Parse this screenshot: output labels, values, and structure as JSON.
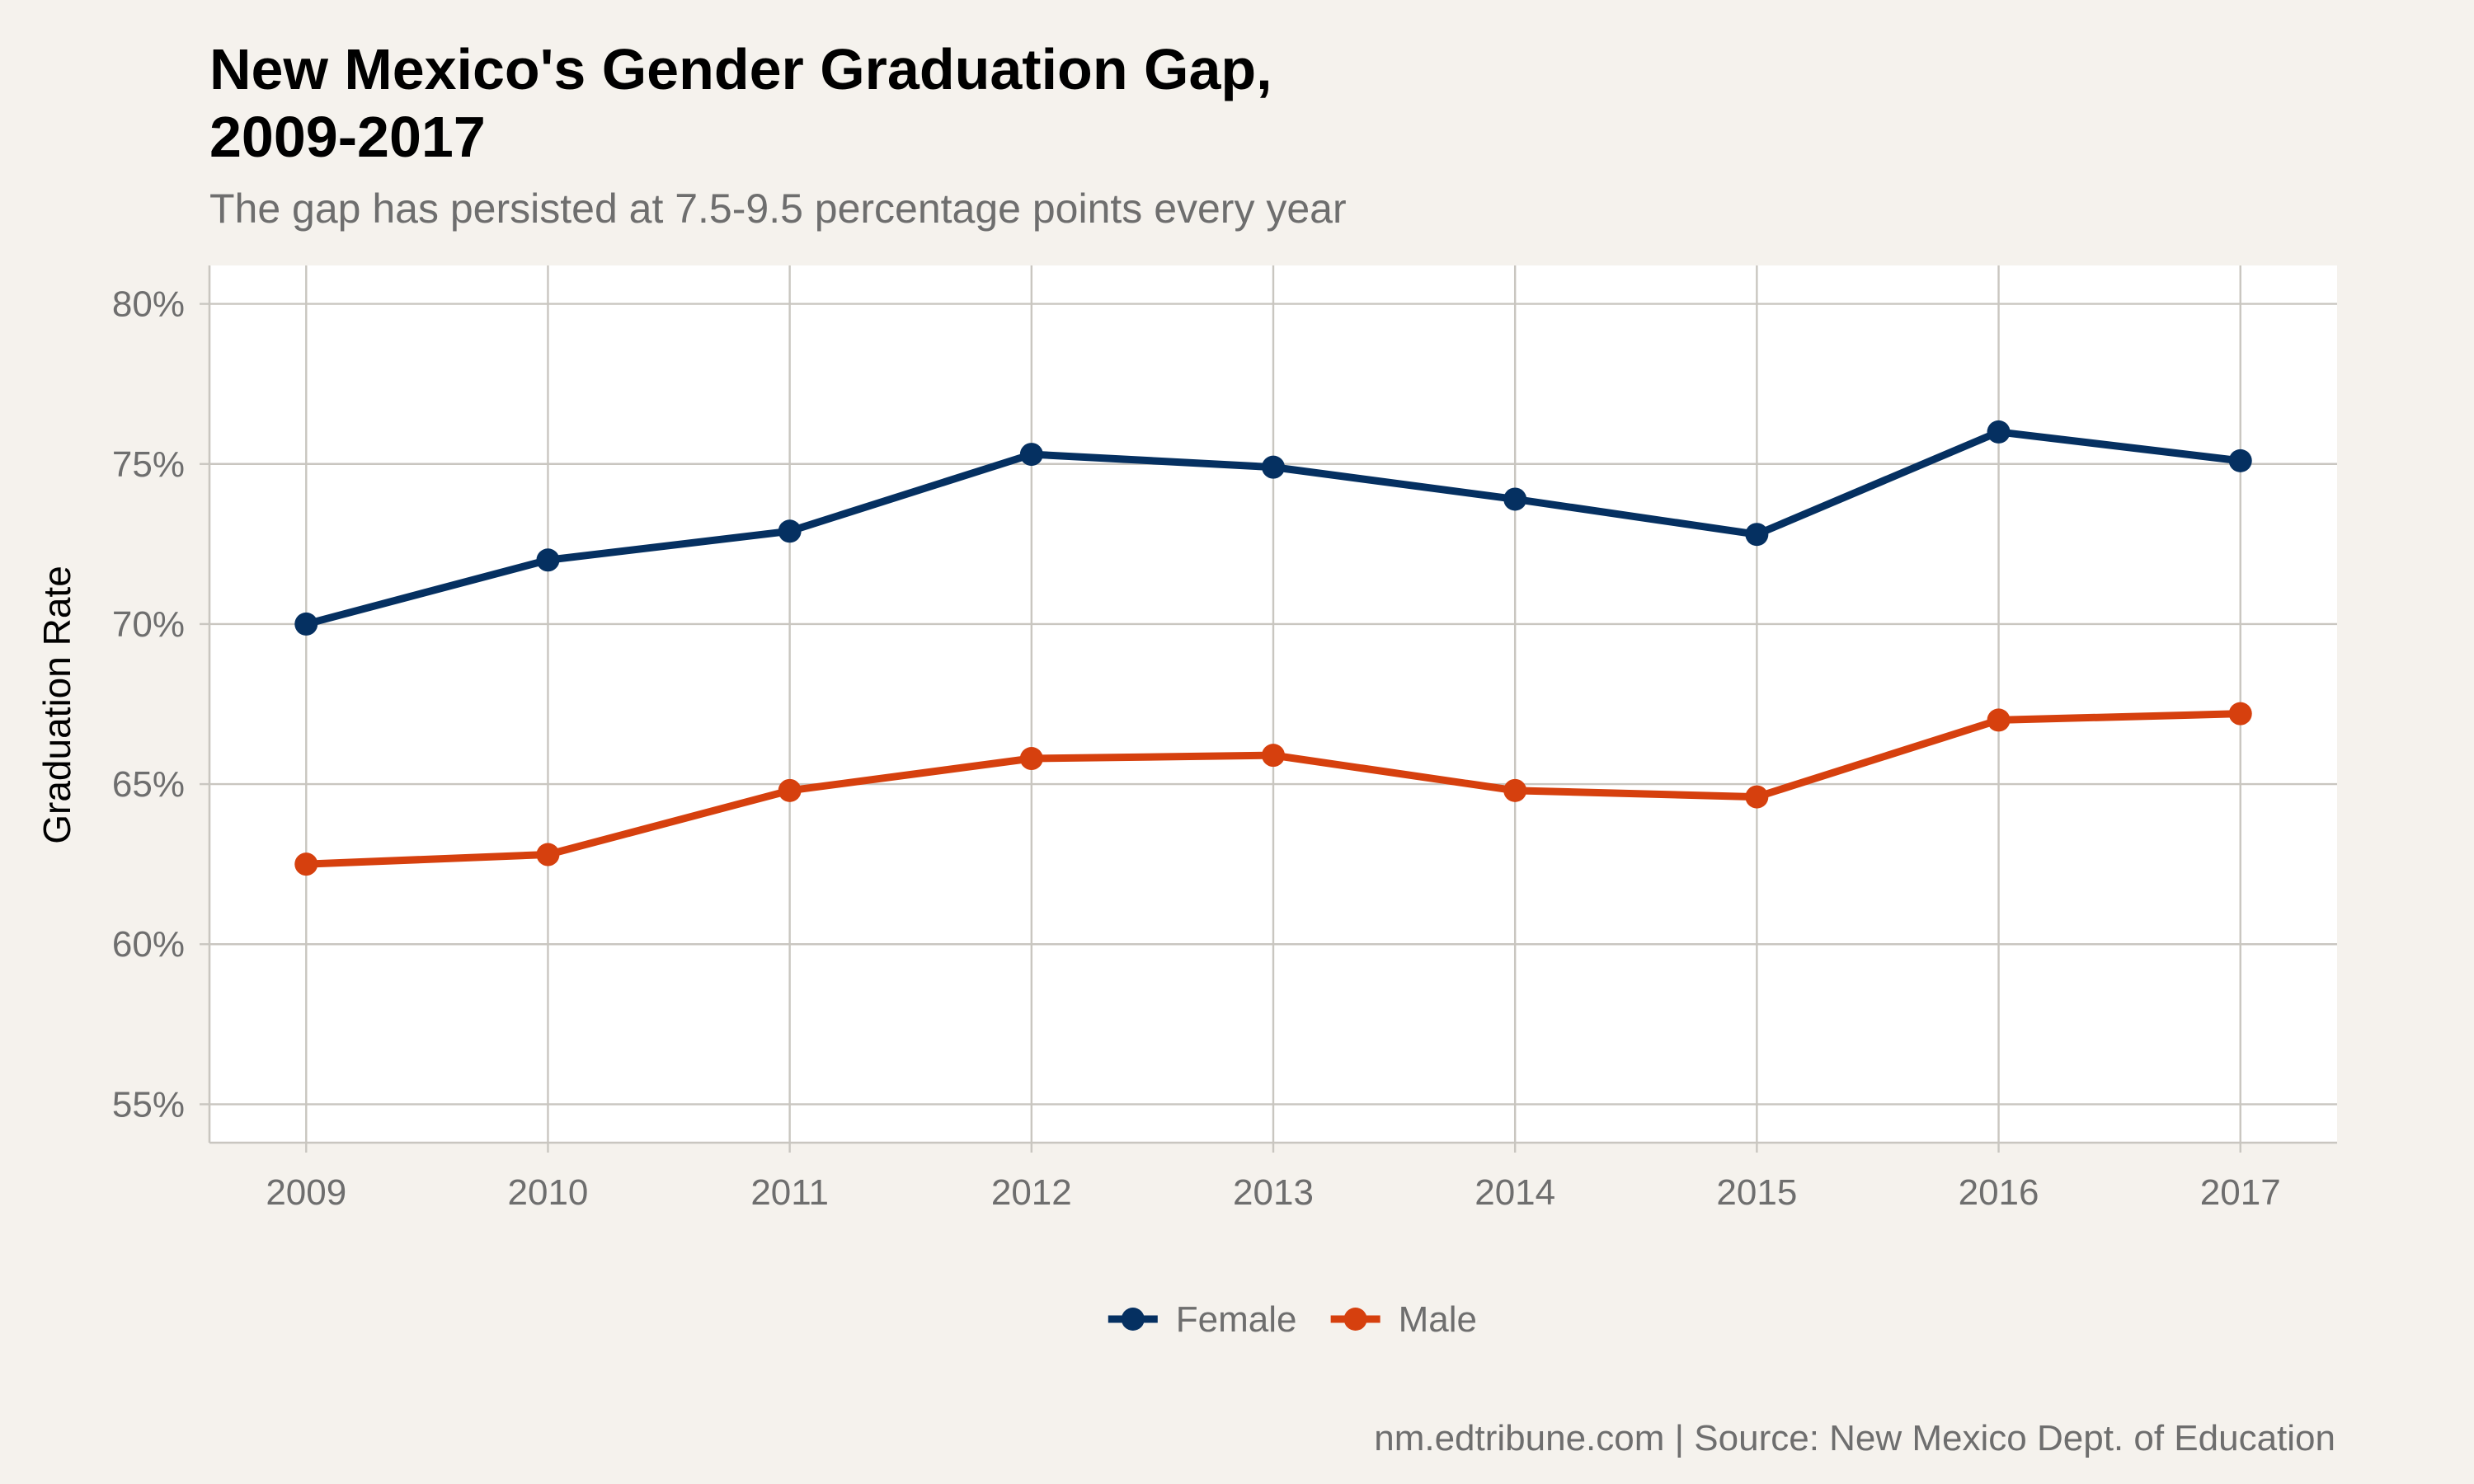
{
  "chart_data": {
    "type": "line",
    "title": "New Mexico's Gender Graduation Gap,\n2009-2017",
    "subtitle": "The gap has persisted at 7.5-9.5 percentage points every year",
    "xlabel": "",
    "ylabel": "Graduation Rate",
    "x": [
      "2009",
      "2010",
      "2011",
      "2012",
      "2013",
      "2014",
      "2015",
      "2016",
      "2017"
    ],
    "xlim": [
      2008.6,
      2017.4
    ],
    "ylim": [
      53.8,
      81.2
    ],
    "yticks": [
      55,
      60,
      65,
      70,
      75,
      80
    ],
    "ytick_labels": [
      "55%",
      "60%",
      "65%",
      "70%",
      "75%",
      "80%"
    ],
    "grid": true,
    "legend_position": "bottom",
    "series": [
      {
        "name": "Female",
        "color": "#053061",
        "values": [
          70.0,
          72.0,
          72.9,
          75.3,
          74.9,
          73.9,
          72.8,
          76.0,
          75.1
        ]
      },
      {
        "name": "Male",
        "color": "#d6400e",
        "values": [
          62.5,
          62.8,
          64.8,
          65.8,
          65.9,
          64.8,
          64.6,
          67.0,
          67.2
        ]
      }
    ],
    "caption": "nm.edtribune.com | Source: New Mexico Dept. of Education"
  }
}
